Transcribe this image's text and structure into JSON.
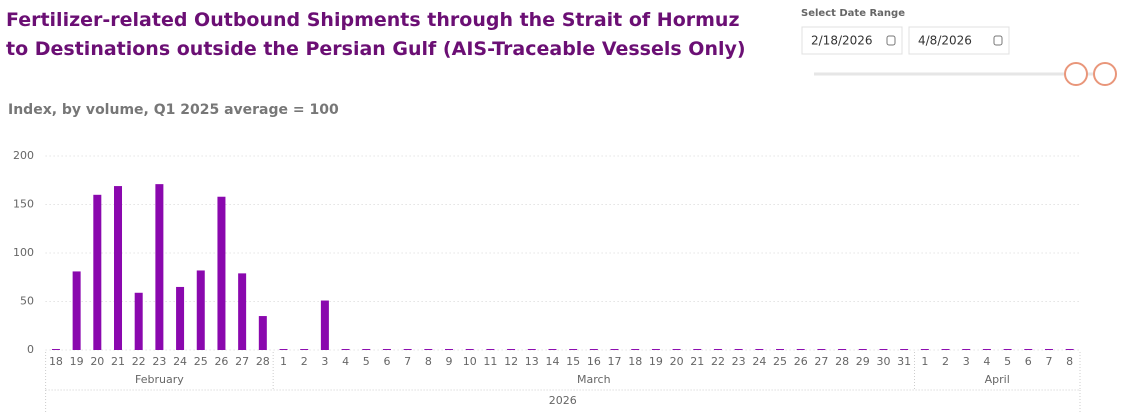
{
  "chart_data": {
    "type": "bar",
    "title": "Fertilizer-related Outbound Shipments through the Strait of Hormuz to Destinations outside the Persian Gulf (AIS-Traceable Vessels Only)",
    "subtitle": "Index, by volume, Q1 2025 average = 100",
    "color": "#8a08ae",
    "ylim": [
      0,
      200
    ],
    "yticks": [
      0,
      50,
      100,
      150,
      200
    ],
    "grid": true,
    "year": "2026",
    "months": [
      {
        "name": "February",
        "days": [
          "18",
          "19",
          "20",
          "21",
          "22",
          "23",
          "24",
          "25",
          "26",
          "27",
          "28"
        ],
        "values": [
          1,
          81,
          160,
          169,
          59,
          171,
          65,
          82,
          158,
          79,
          35
        ]
      },
      {
        "name": "March",
        "days": [
          "1",
          "2",
          "3",
          "4",
          "5",
          "6",
          "7",
          "8",
          "9",
          "10",
          "11",
          "12",
          "13",
          "14",
          "15",
          "16",
          "17",
          "18",
          "19",
          "20",
          "21",
          "22",
          "23",
          "24",
          "25",
          "26",
          "27",
          "28",
          "29",
          "30",
          "31"
        ],
        "values": [
          1,
          1,
          51,
          1,
          1,
          1,
          1,
          1,
          1,
          1,
          1,
          1,
          1,
          1,
          1,
          1,
          1,
          1,
          1,
          1,
          1,
          1,
          1,
          1,
          1,
          1,
          1,
          1,
          1,
          1,
          1
        ]
      },
      {
        "name": "April",
        "days": [
          "1",
          "2",
          "3",
          "4",
          "5",
          "6",
          "7",
          "8"
        ],
        "values": [
          1,
          1,
          1,
          1,
          1,
          1,
          1,
          1
        ]
      }
    ]
  },
  "date_range": {
    "label": "Select Date Range",
    "start": "2/18/2026",
    "end": "4/8/2026"
  }
}
